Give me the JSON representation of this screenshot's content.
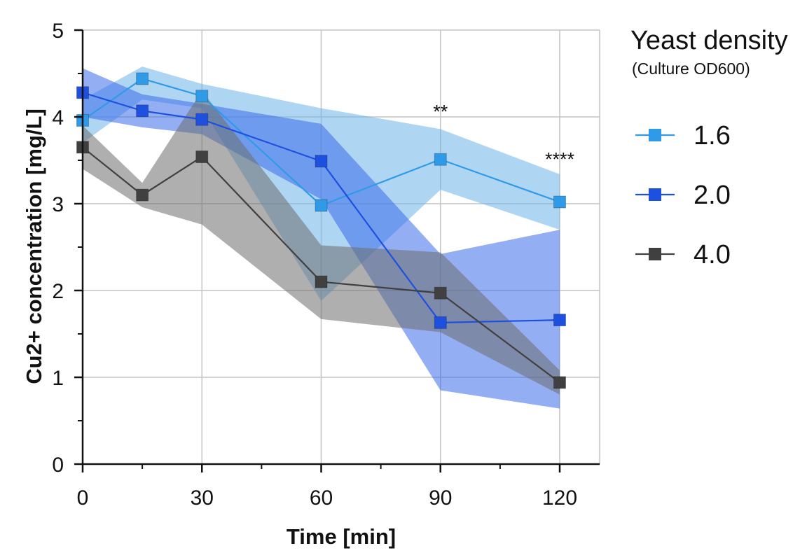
{
  "chart_data": {
    "type": "line",
    "xlabel": "Time [min]",
    "ylabel": "Cu2+ concentration [mg/L]",
    "xlim": [
      0,
      120
    ],
    "ylim": [
      0,
      5
    ],
    "x_ticks": [
      0,
      30,
      60,
      90,
      120
    ],
    "x_minor_ticks": [
      15,
      45,
      75,
      105
    ],
    "y_ticks": [
      0,
      1,
      2,
      3,
      4,
      5
    ],
    "y_minor_ticks": [
      0.5,
      1.5,
      2.5,
      3.5,
      4.5
    ],
    "grid": true,
    "legend": {
      "title": "Yeast density",
      "subtitle": "(Culture OD600)",
      "placement": "right"
    },
    "series": [
      {
        "name": "1.6",
        "color": "#2f9be8",
        "band_color": "#6bb5ea",
        "x": [
          0,
          15,
          30,
          60,
          90,
          120
        ],
        "y": [
          3.96,
          4.44,
          4.24,
          2.98,
          3.51,
          3.02
        ],
        "lower": [
          3.7,
          4.2,
          4.1,
          1.88,
          3.16,
          2.7
        ],
        "upper": [
          4.2,
          4.58,
          4.38,
          4.1,
          3.86,
          3.34
        ]
      },
      {
        "name": "2.0",
        "color": "#1e50e0",
        "band_color": "#3a6cea",
        "x": [
          0,
          15,
          30,
          60,
          90,
          120
        ],
        "y": [
          4.28,
          4.07,
          3.97,
          3.49,
          1.63,
          1.66
        ],
        "lower": [
          4.0,
          3.88,
          3.8,
          3.05,
          0.85,
          0.64
        ],
        "upper": [
          4.56,
          4.26,
          4.15,
          3.92,
          2.42,
          2.7
        ]
      },
      {
        "name": "4.0",
        "color": "#404040",
        "band_color": "#6e6e6e",
        "x": [
          0,
          15,
          30,
          60,
          90,
          120
        ],
        "y": [
          3.65,
          3.1,
          3.54,
          2.1,
          1.97,
          0.94
        ],
        "lower": [
          3.4,
          2.96,
          2.76,
          1.67,
          1.52,
          0.8
        ],
        "upper": [
          3.9,
          3.24,
          4.3,
          2.52,
          2.44,
          1.08
        ]
      }
    ],
    "annotations": [
      {
        "text": "**",
        "x": 90,
        "y": 4.15
      },
      {
        "text": "****",
        "x": 120,
        "y": 3.6
      }
    ]
  }
}
